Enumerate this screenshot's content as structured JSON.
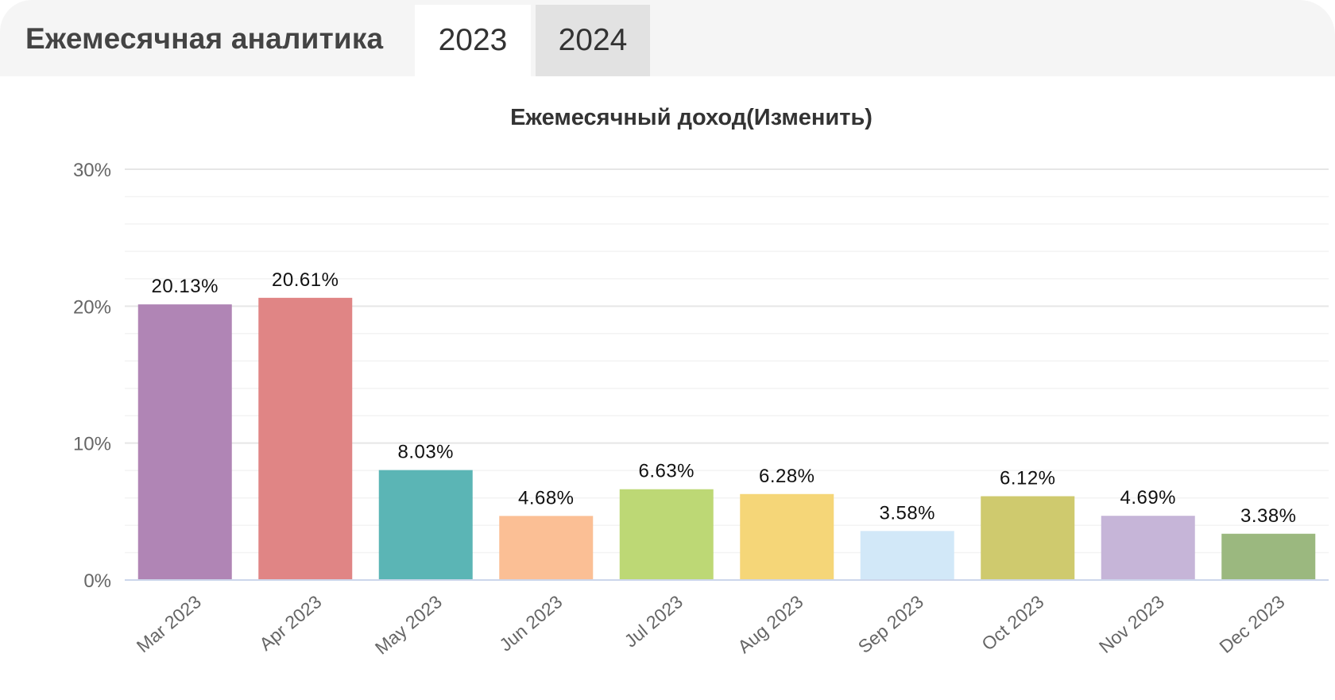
{
  "header": {
    "title": "Ежемесячная аналитика",
    "tabs": [
      {
        "label": "2023",
        "active": true
      },
      {
        "label": "2024",
        "active": false
      }
    ]
  },
  "chart_data": {
    "type": "bar",
    "title": "Ежемесячный доход(Изменить)",
    "xlabel": "",
    "ylabel": "",
    "ylim": [
      0,
      30
    ],
    "yticks": [
      "0%",
      "10%",
      "20%",
      "30%"
    ],
    "grid": true,
    "categories": [
      "Mar 2023",
      "Apr 2023",
      "May 2023",
      "Jun 2023",
      "Jul 2023",
      "Aug 2023",
      "Sep 2023",
      "Oct 2023",
      "Nov 2023",
      "Dec 2023"
    ],
    "values": [
      20.13,
      20.61,
      8.03,
      4.68,
      6.63,
      6.28,
      3.58,
      6.12,
      4.69,
      3.38
    ],
    "labels": [
      "20.13%",
      "20.61%",
      "8.03%",
      "4.68%",
      "6.63%",
      "6.28%",
      "3.58%",
      "6.12%",
      "4.69%",
      "3.38%"
    ],
    "colors": [
      "#b085b5",
      "#e08585",
      "#5bb5b5",
      "#fbbf95",
      "#bdd875",
      "#f5d678",
      "#d2e8f8",
      "#cfca6e",
      "#c6b5d8",
      "#9bb87f"
    ]
  }
}
